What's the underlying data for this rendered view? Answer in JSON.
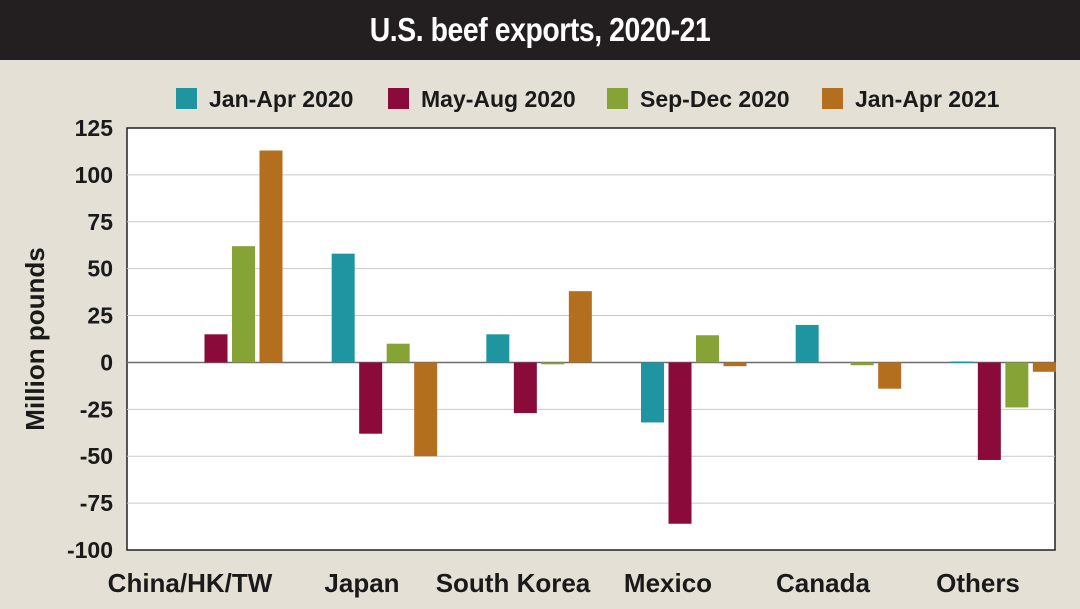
{
  "chart_data": {
    "type": "bar",
    "title": "U.S. beef exports, 2020-21",
    "ylabel": "Million pounds",
    "xlabel": "",
    "ylim": [
      -100,
      125
    ],
    "yticks": [
      125,
      100,
      75,
      50,
      25,
      0,
      -25,
      -50,
      -75,
      -100
    ],
    "grid": true,
    "legend_position": "top",
    "categories": [
      "China/HK/TW",
      "Japan",
      "South Korea",
      "Mexico",
      "Canada",
      "Others"
    ],
    "series": [
      {
        "name": "Jan-Apr 2020",
        "color": "#1e95a1",
        "values": [
          0,
          58,
          15,
          -32,
          20,
          0.5
        ]
      },
      {
        "name": "May-Aug 2020",
        "color": "#8a0b3a",
        "values": [
          15,
          -38,
          -27,
          -86,
          0,
          -52
        ]
      },
      {
        "name": "Sep-Dec 2020",
        "color": "#86a336",
        "values": [
          62,
          10,
          -1,
          14.5,
          -1.5,
          -24
        ]
      },
      {
        "name": "Jan-Apr 2021",
        "color": "#b46f1e",
        "values": [
          113,
          -50,
          38,
          -2,
          -14,
          -5
        ]
      }
    ]
  }
}
